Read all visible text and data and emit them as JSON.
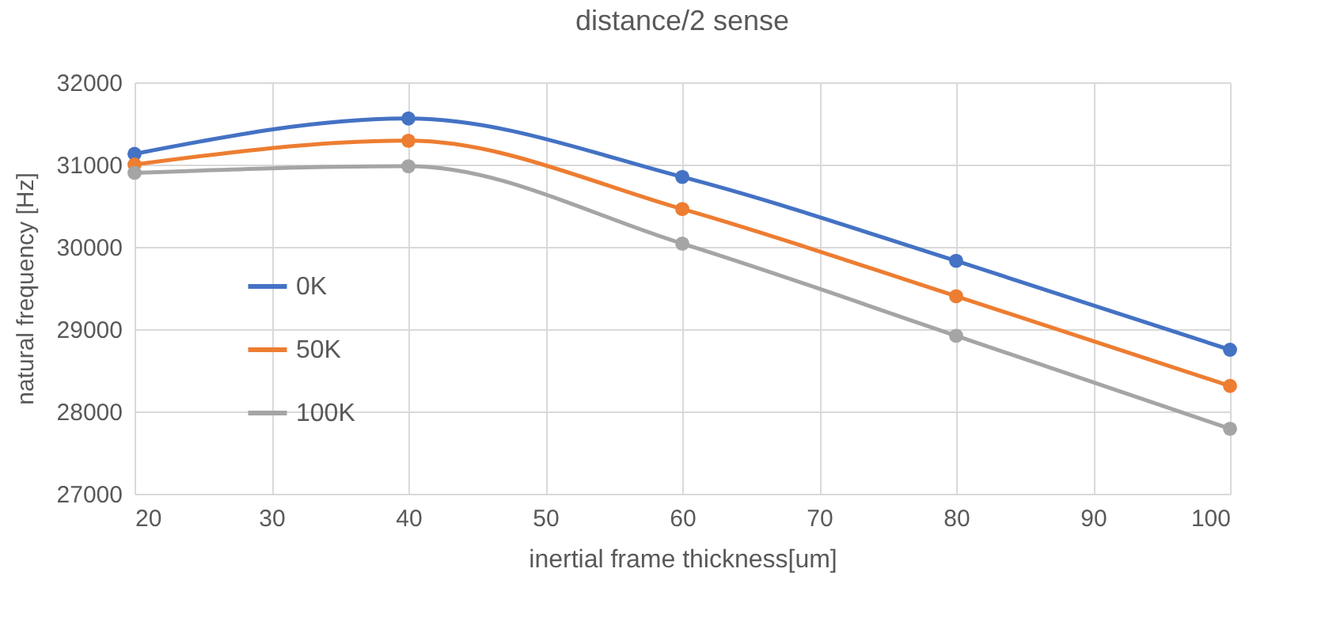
{
  "chart_data": {
    "type": "line",
    "title": "distance/2 sense",
    "xlabel": "inertial frame thickness[um]",
    "ylabel": "natural frequency [Hz]",
    "x": [
      20,
      40,
      60,
      80,
      100
    ],
    "series": [
      {
        "name": "0K",
        "color": "#4472c4",
        "values": [
          31130,
          31560,
          30850,
          29830,
          28750
        ]
      },
      {
        "name": "50K",
        "color": "#ed7d31",
        "values": [
          31000,
          31290,
          30460,
          29400,
          28310
        ]
      },
      {
        "name": "100K",
        "color": "#a5a5a5",
        "values": [
          30900,
          30980,
          30040,
          28920,
          27790
        ]
      }
    ],
    "xlim": [
      20,
      100
    ],
    "xticks": [
      20,
      30,
      40,
      50,
      60,
      70,
      80,
      90,
      100
    ],
    "ylim": [
      27000,
      32000
    ],
    "yticks": [
      27000,
      28000,
      29000,
      30000,
      31000,
      32000
    ],
    "grid": true,
    "legend": "left",
    "marker": "circle",
    "line_style": "solid"
  }
}
